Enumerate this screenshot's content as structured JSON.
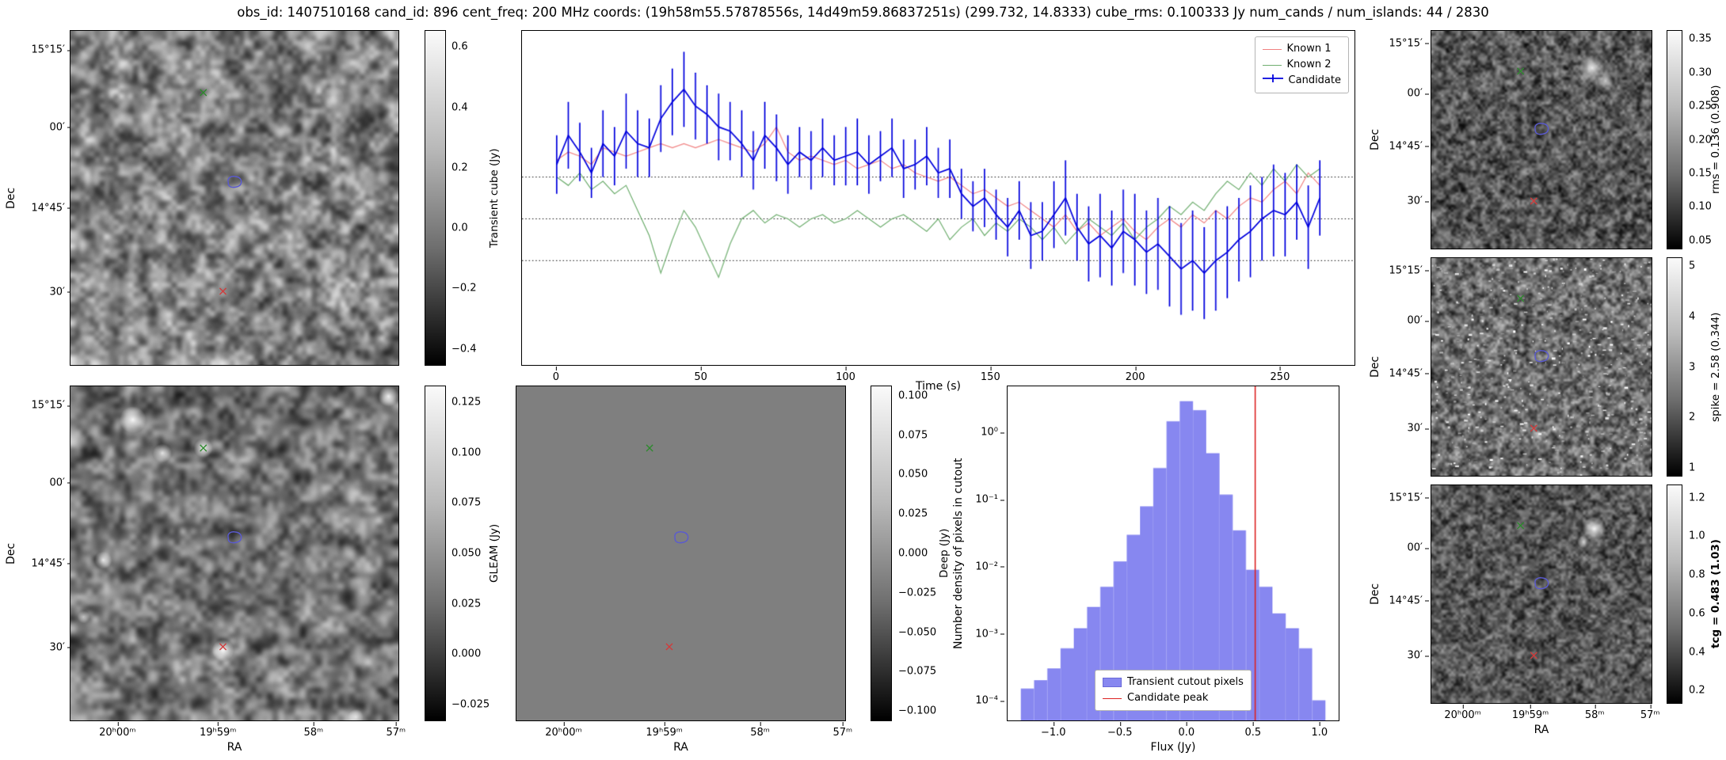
{
  "title": "obs_id: 1407510168 cand_id: 896 cent_freq: 200 MHz coords: (19h58m55.57878556s, 14d49m59.86837251s) (299.732, 14.8333) cube_rms: 0.100333 Jy num_cands / num_islands: 44 / 2830",
  "axes": {
    "dec_label": "Dec",
    "ra_label": "RA",
    "dec_ticks": [
      "15°15′",
      "00′",
      "14°45′",
      "30′"
    ],
    "ra_ticks": [
      "20ʰ00ᵐ",
      "19ʰ59ᵐ",
      "58ᵐ",
      "57ᵐ"
    ]
  },
  "icons": {
    "known1_marker": "red-x-marker",
    "known2_marker": "green-x-marker",
    "candidate_marker": "blue-contour-marker"
  },
  "panels": {
    "transient_cube": {
      "colorbar_label": "Transient cube (Jy)",
      "colorbar_ticks": [
        "0.6",
        "0.4",
        "0.2",
        "0.0",
        "−0.2",
        "−0.4"
      ]
    },
    "gleam": {
      "colorbar_label": "GLEAM (Jy)",
      "colorbar_ticks": [
        "0.125",
        "0.100",
        "0.075",
        "0.050",
        "0.025",
        "0.000",
        "−0.025"
      ]
    },
    "deep": {
      "colorbar_label": "Deep (Jy)",
      "colorbar_ticks": [
        "0.100",
        "0.075",
        "0.050",
        "0.025",
        "0.000",
        "−0.025",
        "−0.050",
        "−0.075",
        "−0.100"
      ]
    },
    "rms": {
      "colorbar_label": "rms = 0.136 (0.908)",
      "colorbar_ticks": [
        "0.35",
        "0.30",
        "0.25",
        "0.20",
        "0.15",
        "0.10",
        "0.05"
      ]
    },
    "spike": {
      "colorbar_label": "spike = 2.58 (0.344)",
      "colorbar_ticks": [
        "5",
        "4",
        "3",
        "2",
        "1"
      ]
    },
    "tcg": {
      "colorbar_label": "tcg = 0.483 (1.03)",
      "colorbar_ticks": [
        "1.2",
        "1.0",
        "0.8",
        "0.6",
        "0.4",
        "0.2"
      ]
    }
  },
  "chart_data": [
    {
      "type": "line",
      "title": "",
      "xlabel": "Time (s)",
      "ylabel": "",
      "xlim": [
        -12,
        276
      ],
      "ylim": [
        -0.35,
        0.45
      ],
      "x_ticks": [
        0,
        50,
        100,
        150,
        200,
        250
      ],
      "hlines": [
        0.1,
        0.0,
        -0.1
      ],
      "hline_style": "dotted",
      "legend_position": "upper right",
      "x": [
        0,
        4,
        8,
        12,
        16,
        20,
        24,
        28,
        32,
        36,
        40,
        44,
        48,
        52,
        56,
        60,
        64,
        68,
        72,
        76,
        80,
        84,
        88,
        92,
        96,
        100,
        104,
        108,
        112,
        116,
        120,
        124,
        128,
        132,
        136,
        140,
        144,
        148,
        152,
        156,
        160,
        164,
        168,
        172,
        176,
        180,
        184,
        188,
        192,
        196,
        200,
        204,
        208,
        212,
        216,
        220,
        224,
        228,
        232,
        236,
        240,
        244,
        248,
        252,
        256,
        260,
        264
      ],
      "series": [
        {
          "name": "Known 1",
          "color": "#f08080",
          "values": [
            0.14,
            0.16,
            0.15,
            0.13,
            0.17,
            0.16,
            0.15,
            0.16,
            0.17,
            0.18,
            0.17,
            0.18,
            0.17,
            0.18,
            0.19,
            0.18,
            0.17,
            0.16,
            0.18,
            0.22,
            0.16,
            0.14,
            0.15,
            0.14,
            0.13,
            0.14,
            0.12,
            0.13,
            0.14,
            0.12,
            0.13,
            0.11,
            0.1,
            0.09,
            0.1,
            0.08,
            0.06,
            0.07,
            0.05,
            0.03,
            0.04,
            0.02,
            0.0,
            -0.02,
            0.01,
            -0.03,
            -0.01,
            -0.04,
            -0.02,
            0.0,
            -0.03,
            -0.05,
            -0.02,
            0.0,
            -0.02,
            0.01,
            -0.01,
            0.02,
            0.0,
            0.03,
            0.05,
            0.04,
            0.07,
            0.09,
            0.06,
            0.11,
            0.08
          ]
        },
        {
          "name": "Known 2",
          "color": "#6fae6f",
          "values": [
            0.1,
            0.08,
            0.11,
            0.07,
            0.09,
            0.06,
            0.08,
            0.02,
            -0.04,
            -0.13,
            -0.05,
            0.02,
            -0.02,
            -0.08,
            -0.14,
            -0.06,
            0.0,
            0.02,
            -0.01,
            0.01,
            0.0,
            -0.02,
            0.0,
            0.01,
            -0.01,
            0.0,
            0.02,
            0.0,
            -0.02,
            0.0,
            0.01,
            -0.01,
            -0.03,
            0.0,
            -0.05,
            -0.02,
            0.0,
            -0.04,
            -0.01,
            -0.03,
            0.0,
            -0.02,
            -0.05,
            -0.02,
            -0.06,
            -0.03,
            0.0,
            -0.02,
            -0.04,
            -0.01,
            -0.05,
            -0.02,
            0.0,
            0.03,
            0.01,
            0.04,
            0.02,
            0.06,
            0.09,
            0.07,
            0.11,
            0.08,
            0.12,
            0.09,
            0.13,
            0.1,
            0.12
          ]
        },
        {
          "name": "Candidate",
          "color": "#0000dd",
          "values": [
            0.13,
            0.2,
            0.16,
            0.11,
            0.18,
            0.15,
            0.21,
            0.18,
            0.17,
            0.24,
            0.28,
            0.31,
            0.27,
            0.25,
            0.22,
            0.21,
            0.18,
            0.14,
            0.2,
            0.17,
            0.13,
            0.16,
            0.14,
            0.17,
            0.14,
            0.15,
            0.16,
            0.13,
            0.15,
            0.17,
            0.12,
            0.13,
            0.15,
            0.11,
            0.12,
            0.06,
            0.03,
            0.05,
            0.01,
            -0.02,
            0.02,
            -0.04,
            -0.03,
            0.01,
            0.05,
            -0.02,
            -0.06,
            -0.04,
            -0.07,
            -0.03,
            -0.05,
            -0.08,
            -0.06,
            -0.09,
            -0.12,
            -0.1,
            -0.13,
            -0.1,
            -0.08,
            -0.05,
            -0.03,
            0.0,
            0.02,
            0.01,
            0.04,
            -0.02,
            0.05
          ],
          "errors": [
            0.07,
            0.08,
            0.07,
            0.06,
            0.08,
            0.07,
            0.09,
            0.08,
            0.07,
            0.08,
            0.08,
            0.09,
            0.08,
            0.07,
            0.08,
            0.07,
            0.08,
            0.07,
            0.08,
            0.08,
            0.07,
            0.06,
            0.07,
            0.07,
            0.06,
            0.07,
            0.08,
            0.07,
            0.06,
            0.07,
            0.07,
            0.06,
            0.07,
            0.06,
            0.07,
            0.06,
            0.06,
            0.07,
            0.06,
            0.07,
            0.07,
            0.08,
            0.07,
            0.08,
            0.09,
            0.08,
            0.09,
            0.1,
            0.09,
            0.1,
            0.11,
            0.1,
            0.11,
            0.12,
            0.11,
            0.12,
            0.11,
            0.12,
            0.11,
            0.1,
            0.11,
            0.1,
            0.11,
            0.1,
            0.09,
            0.1,
            0.09
          ]
        }
      ]
    },
    {
      "type": "bar",
      "title": "",
      "xlabel": "Flux (Jy)",
      "ylabel": "Number density of pixels in cutout",
      "yscale": "log",
      "xlim": [
        -1.35,
        1.15
      ],
      "ylim": [
        5e-05,
        5
      ],
      "x_ticks": {
        "values": [
          -1.0,
          -0.5,
          0.0,
          0.5,
          1.0
        ],
        "labels": [
          "−1.0",
          "−0.5",
          "0.0",
          "0.5",
          "1.0"
        ]
      },
      "y_ticks": {
        "values": [
          1,
          0.1,
          0.01,
          0.001,
          0.0001
        ],
        "labels": [
          "10⁰",
          "10⁻¹",
          "10⁻²",
          "10⁻³",
          "10⁻⁴"
        ]
      },
      "bin_width": 0.1,
      "bin_centers": [
        -1.2,
        -1.1,
        -1.0,
        -0.9,
        -0.8,
        -0.7,
        -0.6,
        -0.5,
        -0.4,
        -0.3,
        -0.2,
        -0.1,
        0.0,
        0.1,
        0.2,
        0.3,
        0.4,
        0.5,
        0.6,
        0.7,
        0.8,
        0.9,
        1.0
      ],
      "values": [
        0.00015,
        0.0002,
        0.0003,
        0.0006,
        0.0012,
        0.0025,
        0.005,
        0.012,
        0.03,
        0.08,
        0.3,
        1.5,
        3.0,
        2.2,
        0.5,
        0.12,
        0.035,
        0.009,
        0.005,
        0.002,
        0.0012,
        0.0006,
        0.0001
      ],
      "bar_color": "#8787f0",
      "vline": {
        "x": 0.52,
        "color": "#dd2222",
        "label": "Candidate peak"
      },
      "legend": [
        "Transient cutout pixels",
        "Candidate peak"
      ]
    }
  ]
}
